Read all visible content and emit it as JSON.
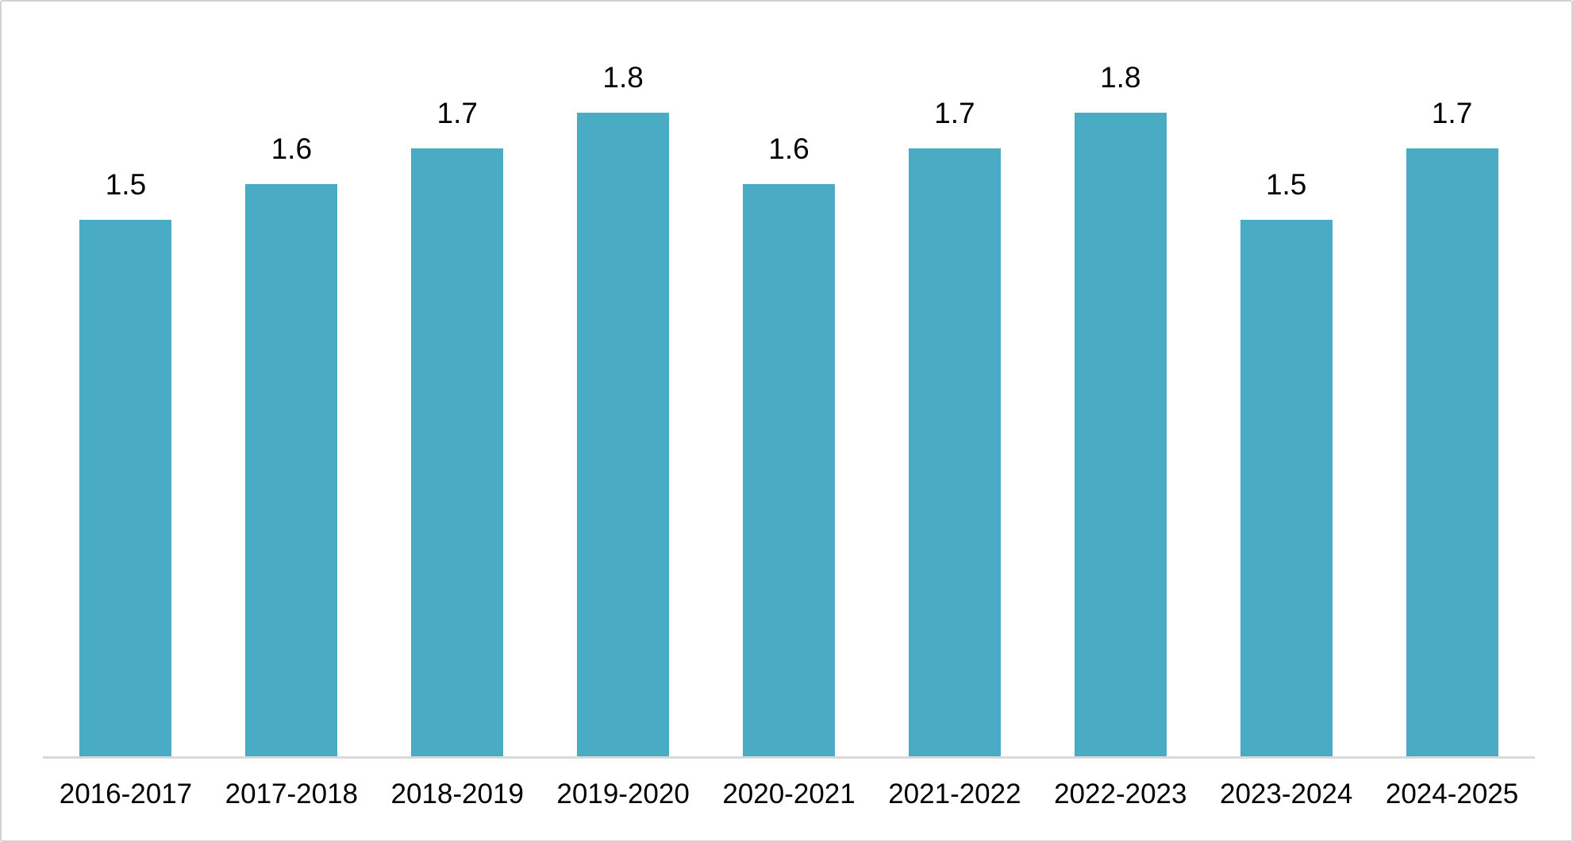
{
  "frame": {
    "background_color": "#ffffff",
    "border_color": "#d2d2d2"
  },
  "chart_data": {
    "type": "bar",
    "title": "",
    "xlabel": "",
    "ylabel": "",
    "categories": [
      "2016-2017",
      "2017-2018",
      "2018-2019",
      "2019-2020",
      "2020-2021",
      "2021-2022",
      "2022-2023",
      "2023-2024",
      "2024-2025"
    ],
    "values": [
      1.5,
      1.6,
      1.7,
      1.8,
      1.6,
      1.7,
      1.8,
      1.5,
      1.7
    ],
    "data_labels": [
      "1.5",
      "1.6",
      "1.7",
      "1.8",
      "1.6",
      "1.7",
      "1.8",
      "1.5",
      "1.7"
    ],
    "ylim": [
      0,
      2
    ],
    "grid": false,
    "legend_position": "none",
    "axis_ticks_visible": false,
    "bar_color": "#4aabc5",
    "axis_line_color": "#d9d9d9",
    "label_color": "#000000"
  }
}
